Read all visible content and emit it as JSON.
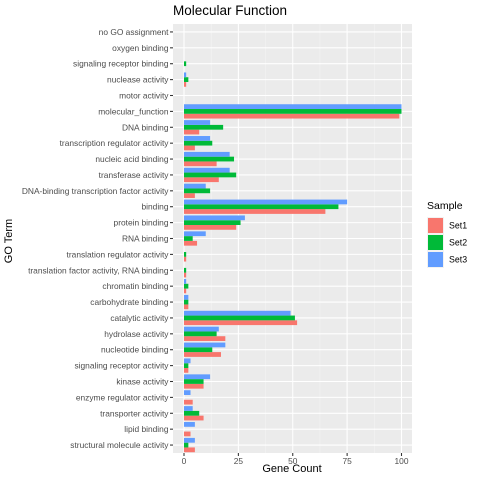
{
  "chart_data": {
    "type": "bar",
    "orientation": "horizontal",
    "title": "Molecular Function",
    "xlabel": "Gene Count",
    "ylabel": "GO Term",
    "xlim": [
      0,
      100
    ],
    "xticks": [
      0,
      25,
      50,
      75,
      100
    ],
    "grid": true,
    "legend_title": "Sample",
    "legend_position": "right",
    "categories": [
      "no GO assignment",
      "oxygen binding",
      "signaling receptor binding",
      "nuclease activity",
      "motor activity",
      "molecular_function",
      "DNA binding",
      "transcription regulator activity",
      "nucleic acid binding",
      "transferase activity",
      "DNA-binding transcription factor activity",
      "binding",
      "protein binding",
      "RNA binding",
      "translation regulator activity",
      "translation factor activity, RNA binding",
      "chromatin binding",
      "carbohydrate binding",
      "catalytic activity",
      "hydrolase activity",
      "nucleotide binding",
      "signaling receptor activity",
      "kinase activity",
      "enzyme regulator activity",
      "transporter activity",
      "lipid binding",
      "structural molecule activity"
    ],
    "series": [
      {
        "name": "Set1",
        "color": "#F8766D",
        "values": [
          0,
          0,
          0,
          1,
          0,
          99,
          7,
          5,
          15,
          16,
          5,
          65,
          24,
          6,
          1,
          1,
          1,
          2,
          52,
          19,
          17,
          2,
          9,
          4,
          9,
          3,
          5
        ]
      },
      {
        "name": "Set2",
        "color": "#00BA38",
        "values": [
          0,
          0,
          1,
          2,
          0,
          100,
          18,
          13,
          23,
          24,
          12,
          71,
          26,
          4,
          1,
          1,
          2,
          2,
          51,
          15,
          13,
          2,
          9,
          0,
          7,
          0,
          2
        ]
      },
      {
        "name": "Set3",
        "color": "#619CFF",
        "values": [
          0,
          0,
          0,
          1,
          0,
          100,
          12,
          12,
          21,
          21,
          10,
          75,
          28,
          10,
          0,
          0,
          1,
          2,
          49,
          16,
          19,
          3,
          12,
          3,
          4,
          5,
          5
        ]
      }
    ]
  }
}
